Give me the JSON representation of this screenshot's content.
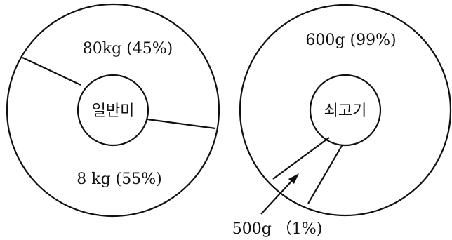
{
  "chart_data": [
    {
      "type": "pie",
      "center_label": "일반미",
      "slices": [
        {
          "label": "80kg (45%)",
          "value": 45
        },
        {
          "label": "8 kg (55%)",
          "value": 55
        }
      ]
    },
    {
      "type": "pie",
      "center_label": "쇠고기",
      "slices": [
        {
          "label": "600g (99%)",
          "value": 99
        },
        {
          "label": "500g （1%)",
          "value": 1
        }
      ]
    }
  ]
}
